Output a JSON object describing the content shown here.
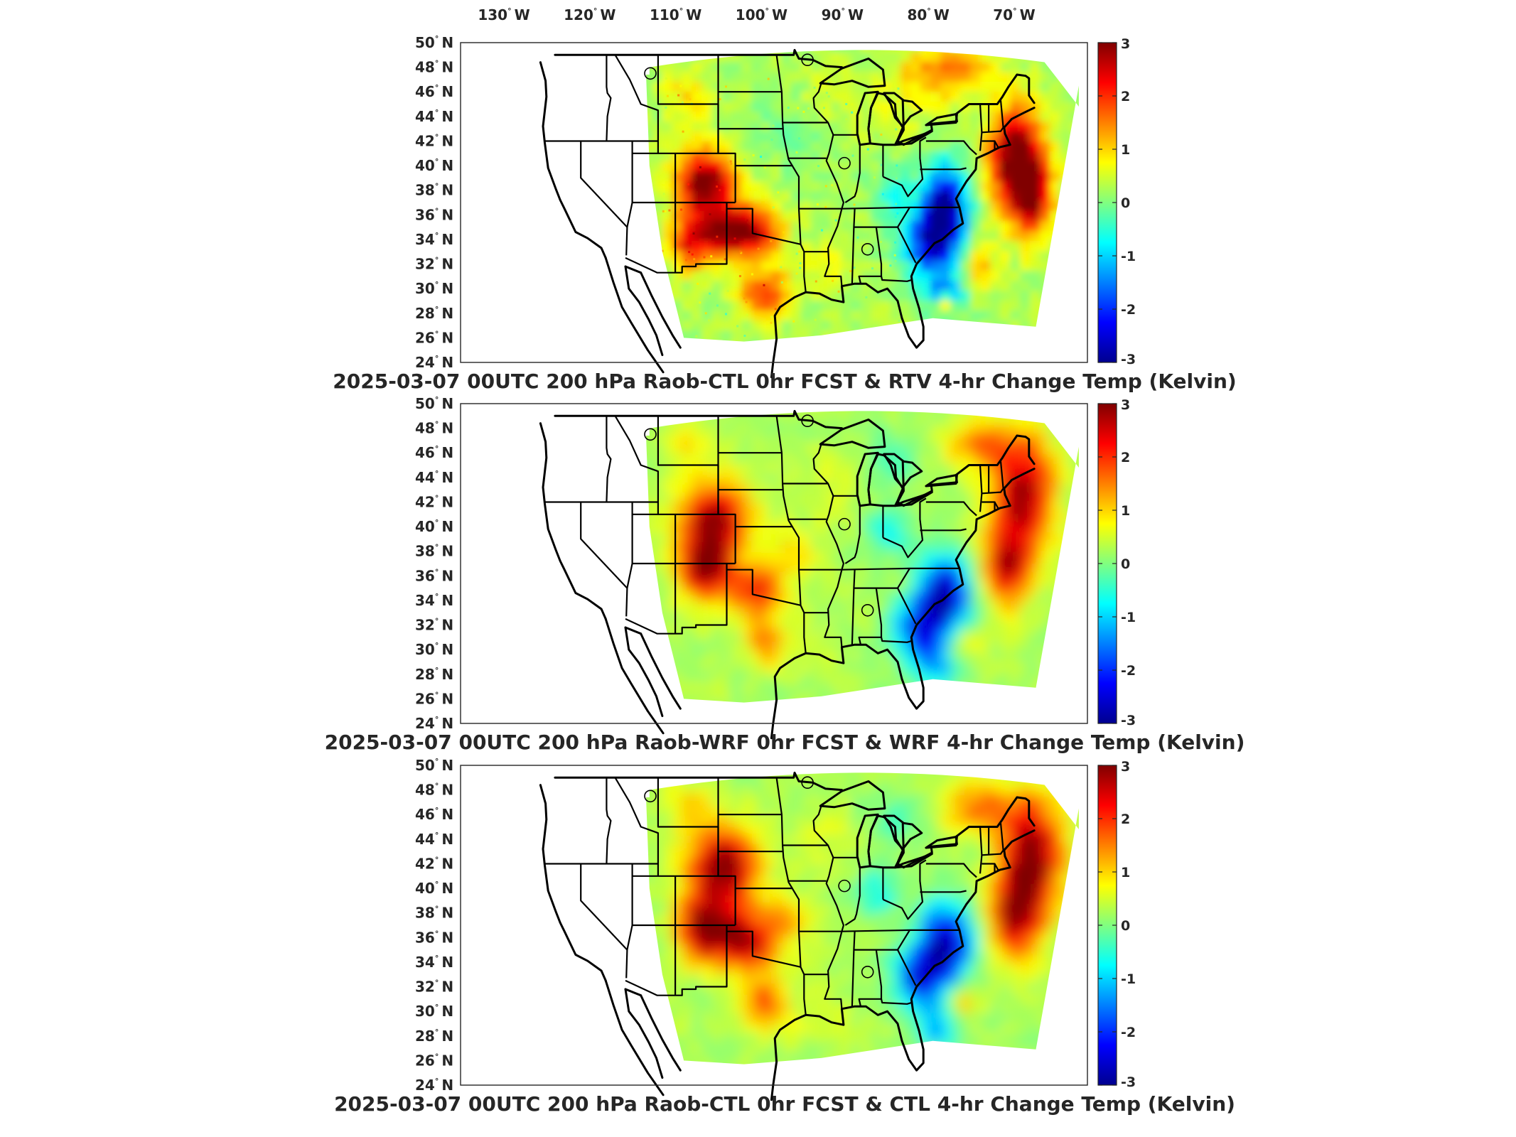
{
  "colors": {
    "frame": "#262626",
    "colormap": [
      "#00008f",
      "#0000ff",
      "#0080ff",
      "#00ffff",
      "#80ff80",
      "#ffff00",
      "#ff8000",
      "#ff0000",
      "#800000"
    ]
  },
  "longitude_labels": [
    {
      "deg": "130",
      "hemi": "W"
    },
    {
      "deg": "120",
      "hemi": "W"
    },
    {
      "deg": "110",
      "hemi": "W"
    },
    {
      "deg": "100",
      "hemi": "W"
    },
    {
      "deg": "90",
      "hemi": "W"
    },
    {
      "deg": "80",
      "hemi": "W"
    },
    {
      "deg": "70",
      "hemi": "W"
    }
  ],
  "latitude_labels": [
    {
      "deg": "50",
      "hemi": "N"
    },
    {
      "deg": "48",
      "hemi": "N"
    },
    {
      "deg": "46",
      "hemi": "N"
    },
    {
      "deg": "44",
      "hemi": "N"
    },
    {
      "deg": "42",
      "hemi": "N"
    },
    {
      "deg": "40",
      "hemi": "N"
    },
    {
      "deg": "38",
      "hemi": "N"
    },
    {
      "deg": "36",
      "hemi": "N"
    },
    {
      "deg": "34",
      "hemi": "N"
    },
    {
      "deg": "32",
      "hemi": "N"
    },
    {
      "deg": "30",
      "hemi": "N"
    },
    {
      "deg": "28",
      "hemi": "N"
    },
    {
      "deg": "26",
      "hemi": "N"
    },
    {
      "deg": "24",
      "hemi": "N"
    }
  ],
  "colorbar_ticks": [
    "3",
    "2",
    "1",
    "0",
    "-1",
    "-2",
    "-3"
  ],
  "colorbar_range": [
    -3,
    3
  ],
  "stations": [
    {
      "name": "",
      "lon": -111.9,
      "lat": 47.5
    },
    {
      "name": "",
      "lon": -93.6,
      "lat": 48.6
    },
    {
      "name": "",
      "lon": -89.3,
      "lat": 40.2
    },
    {
      "name": "",
      "lon": -86.6,
      "lat": 33.2
    }
  ],
  "panels": [
    {
      "title": "2025-03-07 00UTC 200 hPa Raob-CTL 0hr FCST & RTV 4-hr Change Temp (Kelvin)",
      "variant": "rtv",
      "seed": 11
    },
    {
      "title": "2025-03-07 00UTC 200 hPa Raob-WRF 0hr FCST & WRF 4-hr Change Temp (Kelvin)",
      "variant": "wrf",
      "seed": 23
    },
    {
      "title": "2025-03-07 00UTC 200 hPa Raob-CTL 0hr FCST & CTL 4-hr Change Temp (Kelvin)",
      "variant": "ctl",
      "seed": 37
    }
  ]
}
